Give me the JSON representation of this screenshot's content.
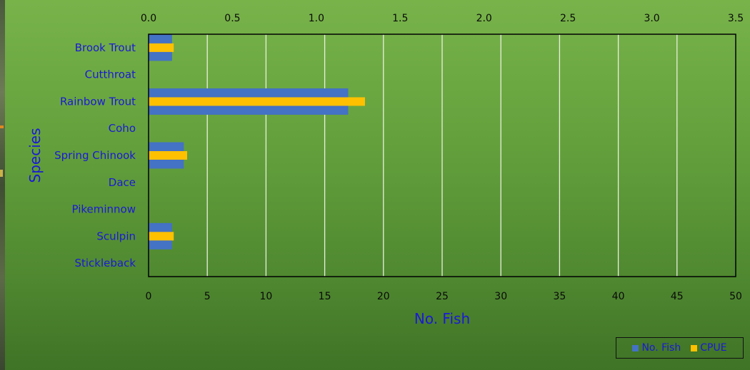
{
  "chart_data": {
    "type": "bar",
    "orientation": "horizontal",
    "categories": [
      "Brook Trout",
      "Cutthroat",
      "Rainbow Trout",
      "Coho",
      "Spring Chinook",
      "Dace",
      "Pikeminnow",
      "Sculpin",
      "Stickleback"
    ],
    "series": [
      {
        "name": "No. Fish",
        "axis": "bottom",
        "color": "#4472c4",
        "values": [
          2,
          0,
          17,
          0,
          3,
          0,
          0,
          2,
          0
        ]
      },
      {
        "name": "CPUE",
        "axis": "top",
        "color": "#ffc000",
        "values": [
          0.15,
          0,
          1.29,
          0,
          0.23,
          0,
          0,
          0.15,
          0
        ]
      }
    ],
    "xlabel": "No. Fish",
    "ylabel": "Species",
    "bottom_axis": {
      "range": [
        0,
        50
      ],
      "ticks": [
        "0",
        "5",
        "10",
        "15",
        "20",
        "25",
        "30",
        "35",
        "40",
        "45",
        "50"
      ]
    },
    "top_axis": {
      "range": [
        0,
        3.5
      ],
      "ticks": [
        "0.0",
        "0.5",
        "1.0",
        "1.5",
        "2.0",
        "2.5",
        "3.0",
        "3.5"
      ]
    },
    "gridlines": true,
    "legend_position": "bottom-right"
  }
}
